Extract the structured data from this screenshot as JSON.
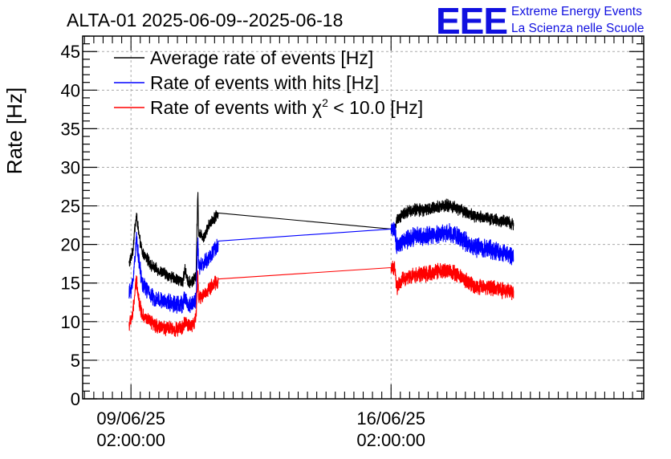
{
  "chart_data": {
    "type": "line",
    "title": "ALTA-01 2025-06-09--2025-06-18",
    "ylabel": "Rate [Hz]",
    "xlabel": "",
    "ylim": [
      0,
      47
    ],
    "yticks": [
      0,
      5,
      10,
      15,
      20,
      25,
      30,
      35,
      40,
      45
    ],
    "ytick_labels": [
      "0",
      "5",
      "10",
      "15",
      "20",
      "25",
      "30",
      "35",
      "40",
      "45"
    ],
    "xlim_days": [
      -1.3,
      13.8
    ],
    "xticks": [
      {
        "day": 0,
        "line1": "09/06/25",
        "line2": "02:00:00"
      },
      {
        "day": 7,
        "line1": "16/06/25",
        "line2": "02:00:00"
      }
    ],
    "grid": true,
    "legend_position": "top-left",
    "legend": [
      {
        "label": "Average rate of events [Hz]",
        "color": "#000000"
      },
      {
        "label": "Rate of events with hits [Hz]",
        "color": "#0000ff"
      },
      {
        "label_prefix": "Rate of events with ",
        "label_symbol": "χ",
        "label_sup": "2",
        "label_suffix": " < 10.0 [Hz]",
        "color": "#ff0000"
      }
    ],
    "logo": {
      "text": "EEE",
      "line1": "Extreme Energy Events",
      "line2": "La Scienza nelle Scuole",
      "color": "#1010e0"
    },
    "series": [
      {
        "name": "Average rate of events [Hz]",
        "color": "#000000",
        "noise": 0.6,
        "gap": [
          1.85,
          7.15
        ],
        "points": [
          [
            -0.05,
            17.5
          ],
          [
            0.05,
            19
          ],
          [
            0.1,
            22
          ],
          [
            0.15,
            23.8
          ],
          [
            0.22,
            21
          ],
          [
            0.3,
            19
          ],
          [
            0.45,
            18
          ],
          [
            0.6,
            17
          ],
          [
            0.8,
            16.5
          ],
          [
            1.0,
            16
          ],
          [
            1.2,
            15.5
          ],
          [
            1.4,
            15.2
          ],
          [
            1.45,
            16.8
          ],
          [
            1.55,
            15
          ],
          [
            1.7,
            15.5
          ],
          [
            1.75,
            16
          ],
          [
            1.8,
            27
          ],
          [
            1.82,
            21.5
          ],
          [
            1.95,
            21
          ],
          [
            2.05,
            22
          ],
          [
            2.15,
            23
          ],
          [
            2.25,
            23.5
          ],
          [
            2.35,
            24
          ],
          [
            7.0,
            22
          ],
          [
            7.1,
            22
          ],
          [
            7.15,
            23
          ],
          [
            7.3,
            24
          ],
          [
            7.6,
            24.5
          ],
          [
            8.0,
            24.5
          ],
          [
            8.3,
            25
          ],
          [
            8.6,
            25
          ],
          [
            8.9,
            24.5
          ],
          [
            9.1,
            24
          ],
          [
            9.3,
            23.5
          ],
          [
            9.6,
            23.5
          ],
          [
            9.9,
            23
          ],
          [
            10.1,
            23
          ],
          [
            10.3,
            22.5
          ]
        ]
      },
      {
        "name": "Rate of events with hits [Hz]",
        "color": "#0000ff",
        "noise": 0.9,
        "gap": [
          1.85,
          7.15
        ],
        "points": [
          [
            -0.05,
            13.5
          ],
          [
            0.05,
            15
          ],
          [
            0.1,
            18
          ],
          [
            0.15,
            21
          ],
          [
            0.22,
            17.5
          ],
          [
            0.3,
            15
          ],
          [
            0.45,
            14
          ],
          [
            0.6,
            13
          ],
          [
            0.8,
            12.7
          ],
          [
            1.0,
            12.5
          ],
          [
            1.2,
            12.3
          ],
          [
            1.4,
            12.2
          ],
          [
            1.45,
            13.2
          ],
          [
            1.55,
            12
          ],
          [
            1.7,
            12.5
          ],
          [
            1.75,
            13
          ],
          [
            1.8,
            21
          ],
          [
            1.82,
            17
          ],
          [
            1.95,
            17.5
          ],
          [
            2.05,
            18
          ],
          [
            2.15,
            18.5
          ],
          [
            2.25,
            19.5
          ],
          [
            2.35,
            19.7
          ],
          [
            7.0,
            22
          ],
          [
            7.1,
            22
          ],
          [
            7.15,
            19.5
          ],
          [
            7.3,
            20.5
          ],
          [
            7.6,
            21
          ],
          [
            8.0,
            21
          ],
          [
            8.3,
            21.5
          ],
          [
            8.6,
            21.5
          ],
          [
            8.9,
            20.8
          ],
          [
            9.1,
            20
          ],
          [
            9.3,
            19.5
          ],
          [
            9.6,
            19.5
          ],
          [
            9.9,
            19
          ],
          [
            10.1,
            18.8
          ],
          [
            10.3,
            18.5
          ]
        ]
      },
      {
        "name": "Rate of events with χ2 < 10.0 [Hz]",
        "color": "#ff0000",
        "noise": 0.75,
        "gap": [
          1.85,
          7.15
        ],
        "points": [
          [
            -0.05,
            9.5
          ],
          [
            0.05,
            11
          ],
          [
            0.1,
            13.5
          ],
          [
            0.15,
            15.5
          ],
          [
            0.22,
            12.5
          ],
          [
            0.3,
            11
          ],
          [
            0.45,
            10.2
          ],
          [
            0.6,
            9.6
          ],
          [
            0.8,
            9.3
          ],
          [
            1.0,
            9.1
          ],
          [
            1.2,
            9.0
          ],
          [
            1.4,
            9.2
          ],
          [
            1.45,
            10
          ],
          [
            1.55,
            9.4
          ],
          [
            1.7,
            9.8
          ],
          [
            1.75,
            10.5
          ],
          [
            1.8,
            16
          ],
          [
            1.82,
            13
          ],
          [
            1.95,
            13.5
          ],
          [
            2.05,
            14
          ],
          [
            2.15,
            14.5
          ],
          [
            2.25,
            15
          ],
          [
            2.35,
            15
          ],
          [
            7.0,
            17
          ],
          [
            7.1,
            17
          ],
          [
            7.15,
            14.5
          ],
          [
            7.3,
            15.5
          ],
          [
            7.6,
            16
          ],
          [
            8.0,
            16.2
          ],
          [
            8.3,
            16.5
          ],
          [
            8.6,
            16.5
          ],
          [
            8.9,
            15.8
          ],
          [
            9.1,
            15
          ],
          [
            9.3,
            14.5
          ],
          [
            9.6,
            14.5
          ],
          [
            9.9,
            14.2
          ],
          [
            10.1,
            14
          ],
          [
            10.3,
            13.8
          ]
        ]
      }
    ]
  }
}
